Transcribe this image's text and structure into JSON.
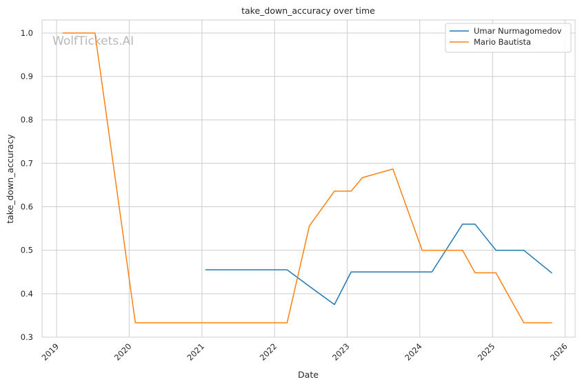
{
  "chart_data": {
    "type": "line",
    "title": "take_down_accuracy over time",
    "xlabel": "Date",
    "ylabel": "take_down_accuracy",
    "watermark": "WolfTickets.AI",
    "x_ticks": [
      "2019",
      "2020",
      "2021",
      "2022",
      "2023",
      "2024",
      "2025",
      "2026"
    ],
    "y_ticks": [
      "0.3",
      "0.4",
      "0.5",
      "0.6",
      "0.7",
      "0.8",
      "0.9",
      "1.0"
    ],
    "xlim": [
      "2018-10-20",
      "2026-02-20"
    ],
    "ylim": [
      0.3,
      1.03
    ],
    "grid": true,
    "legend_position": "top-right",
    "series": [
      {
        "name": "Umar Nurmagomedov",
        "color": "#1f77b4",
        "points": [
          [
            "2021-01-20",
            0.455
          ],
          [
            "2022-03-05",
            0.455
          ],
          [
            "2022-06-25",
            0.417
          ],
          [
            "2022-10-29",
            0.375
          ],
          [
            "2023-01-21",
            0.45
          ],
          [
            "2024-03-02",
            0.45
          ],
          [
            "2024-08-03",
            0.56
          ],
          [
            "2024-10-05",
            0.56
          ],
          [
            "2025-01-18",
            0.5
          ],
          [
            "2025-06-07",
            0.5
          ],
          [
            "2025-10-25",
            0.448
          ]
        ]
      },
      {
        "name": "Mario Bautista",
        "color": "#ff7f0e",
        "points": [
          [
            "2019-02-02",
            1.0
          ],
          [
            "2019-07-13",
            1.0
          ],
          [
            "2020-02-01",
            0.333
          ],
          [
            "2022-03-05",
            0.333
          ],
          [
            "2022-06-25",
            0.556
          ],
          [
            "2022-10-29",
            0.636
          ],
          [
            "2023-01-21",
            0.636
          ],
          [
            "2023-03-18",
            0.667
          ],
          [
            "2023-08-19",
            0.687
          ],
          [
            "2024-01-13",
            0.5
          ],
          [
            "2024-08-03",
            0.5
          ],
          [
            "2024-10-05",
            0.448
          ],
          [
            "2025-01-18",
            0.448
          ],
          [
            "2025-06-07",
            0.333
          ],
          [
            "2025-10-25",
            0.333
          ]
        ]
      }
    ]
  }
}
